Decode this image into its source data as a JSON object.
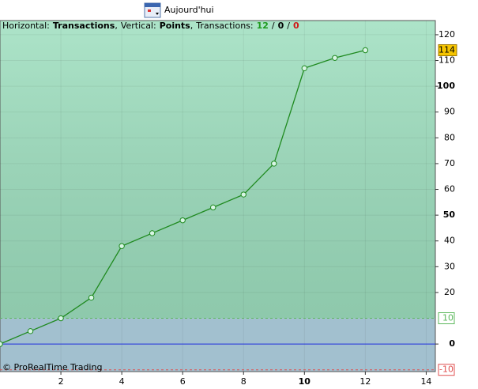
{
  "toolbar": {
    "button": "Aujourd'hui"
  },
  "chart_data": {
    "type": "line",
    "header": [
      {
        "text": "Horizontal:"
      },
      {
        "text": "Transactions",
        "bold": true
      },
      {
        "text": ",",
        "join": true
      },
      {
        "text": "Vertical:"
      },
      {
        "text": "Points",
        "bold": true
      },
      {
        "text": ",",
        "join": true
      },
      {
        "text": "Transactions:"
      },
      {
        "count": 12,
        "color": "#1e9a1e",
        "bold": true
      },
      {
        "text": "/"
      },
      {
        "count": 0,
        "color": "#000000",
        "bold": true
      },
      {
        "text": "/"
      },
      {
        "count": 0,
        "color": "#d01818",
        "bold": true
      }
    ],
    "watermark": "© ProRealTime Trading",
    "x": [
      0,
      1,
      2,
      3,
      4,
      5,
      6,
      7,
      8,
      9,
      10,
      11,
      12
    ],
    "series": [
      {
        "name": "Points",
        "color": "#1f8a1f",
        "values": [
          0,
          5,
          10,
          18,
          38,
          43,
          48,
          53,
          58,
          70,
          107,
          111,
          114
        ]
      }
    ],
    "xlim": [
      0,
      14.3
    ],
    "xticks": [
      2,
      4,
      6,
      8,
      10,
      12,
      14
    ],
    "bold_xticks": [
      10
    ],
    "ylim": [
      -10.7,
      125.5
    ],
    "yticks": [
      0,
      20,
      30,
      40,
      50,
      60,
      70,
      80,
      90,
      100,
      110,
      120
    ],
    "bold_yticks": [
      0,
      50,
      100
    ],
    "levels": [
      {
        "value": 10,
        "color": "#5cb85c"
      },
      {
        "value": -10,
        "color": "#e05050"
      }
    ],
    "zero_line_color": "#2030e0",
    "upper_fill": "#9edfbf",
    "lower_fill": "#a2c0cf",
    "last_value_color": "#f5c400",
    "grid": true
  }
}
